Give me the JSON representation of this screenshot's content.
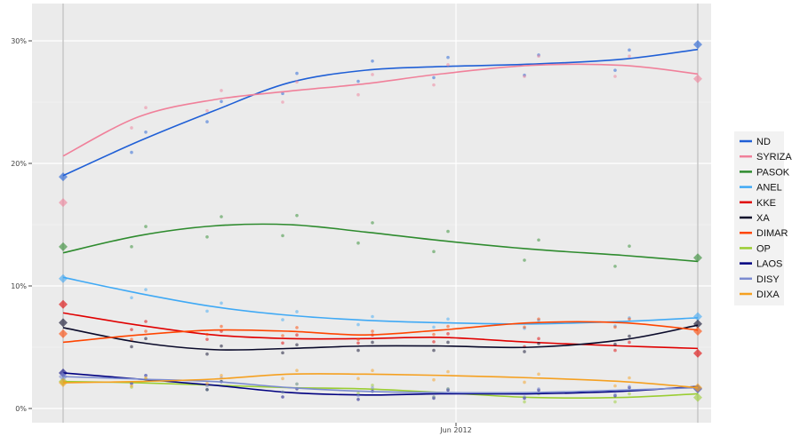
{
  "chart_data": {
    "type": "line",
    "title": "",
    "xlabel": "",
    "ylabel": "",
    "ylim": [
      -1.1,
      33.1
    ],
    "xlim": [
      "2012-05-04",
      "2012-06-18"
    ],
    "y_ticks": [
      "0%",
      "10%",
      "20%",
      "30%"
    ],
    "y_tick_values": [
      0,
      10,
      20,
      30
    ],
    "x_ticks": [
      "Jun 2012"
    ],
    "x_tick_values": [
      "2012-06-01"
    ],
    "election_dates": [
      "2012-05-06",
      "2012-06-17"
    ],
    "grid": true,
    "legend_position": "right",
    "x": [
      "2012-05-06",
      "2012-05-11",
      "2012-05-16",
      "2012-05-21",
      "2012-05-26",
      "2012-05-31",
      "2012-06-06",
      "2012-06-12",
      "2012-06-17"
    ],
    "series": [
      {
        "name": "ND",
        "color": "#1f5fd6",
        "values": [
          19.0,
          21.8,
          24.3,
          26.6,
          27.6,
          27.9,
          28.1,
          28.5,
          29.3
        ],
        "results": [
          18.9,
          29.7
        ]
      },
      {
        "name": "SYRIZA",
        "color": "#f0809a",
        "values": [
          20.6,
          23.8,
          25.2,
          25.9,
          26.5,
          27.3,
          28.0,
          28.0,
          27.3
        ],
        "results": [
          16.8,
          26.9
        ]
      },
      {
        "name": "PASOK",
        "color": "#2e8b2e",
        "values": [
          12.7,
          14.1,
          14.9,
          15.0,
          14.4,
          13.7,
          13.0,
          12.5,
          12.0
        ],
        "results": [
          13.2,
          12.3
        ]
      },
      {
        "name": "ANEL",
        "color": "#3fa9f5",
        "values": [
          10.7,
          9.4,
          8.3,
          7.6,
          7.2,
          7.0,
          6.9,
          7.1,
          7.4
        ],
        "results": [
          10.6,
          7.5
        ]
      },
      {
        "name": "KKE",
        "color": "#e00000",
        "values": [
          7.8,
          6.8,
          6.0,
          5.7,
          5.7,
          5.8,
          5.4,
          5.1,
          4.9
        ],
        "results": [
          8.5,
          4.5
        ]
      },
      {
        "name": "XA",
        "color": "#0a0a2a",
        "values": [
          6.6,
          5.4,
          4.8,
          4.9,
          5.1,
          5.1,
          5.0,
          5.6,
          6.8
        ],
        "results": [
          7.0,
          6.9
        ]
      },
      {
        "name": "DIMAR",
        "color": "#ff4500",
        "values": [
          5.4,
          6.0,
          6.4,
          6.3,
          6.0,
          6.4,
          7.0,
          7.0,
          6.4
        ],
        "results": [
          6.1,
          6.3
        ]
      },
      {
        "name": "OP",
        "color": "#9acd32",
        "values": [
          2.2,
          2.1,
          1.9,
          1.7,
          1.6,
          1.3,
          0.9,
          0.9,
          1.2
        ],
        "results": [
          2.2,
          0.9
        ]
      },
      {
        "name": "LAOS",
        "color": "#000080",
        "values": [
          2.9,
          2.4,
          1.9,
          1.3,
          1.1,
          1.2,
          1.2,
          1.4,
          1.8
        ],
        "results": [
          2.9,
          1.6
        ]
      },
      {
        "name": "DISY",
        "color": "#7b8bd0",
        "values": [
          2.6,
          2.4,
          2.2,
          1.7,
          1.4,
          1.3,
          1.3,
          1.5,
          1.7
        ],
        "results": [
          2.6,
          1.6
        ]
      },
      {
        "name": "DIXA",
        "color": "#f5a020",
        "values": [
          2.1,
          2.2,
          2.4,
          2.8,
          2.8,
          2.7,
          2.5,
          2.2,
          1.7
        ],
        "results": [
          2.1,
          1.7
        ]
      }
    ]
  }
}
